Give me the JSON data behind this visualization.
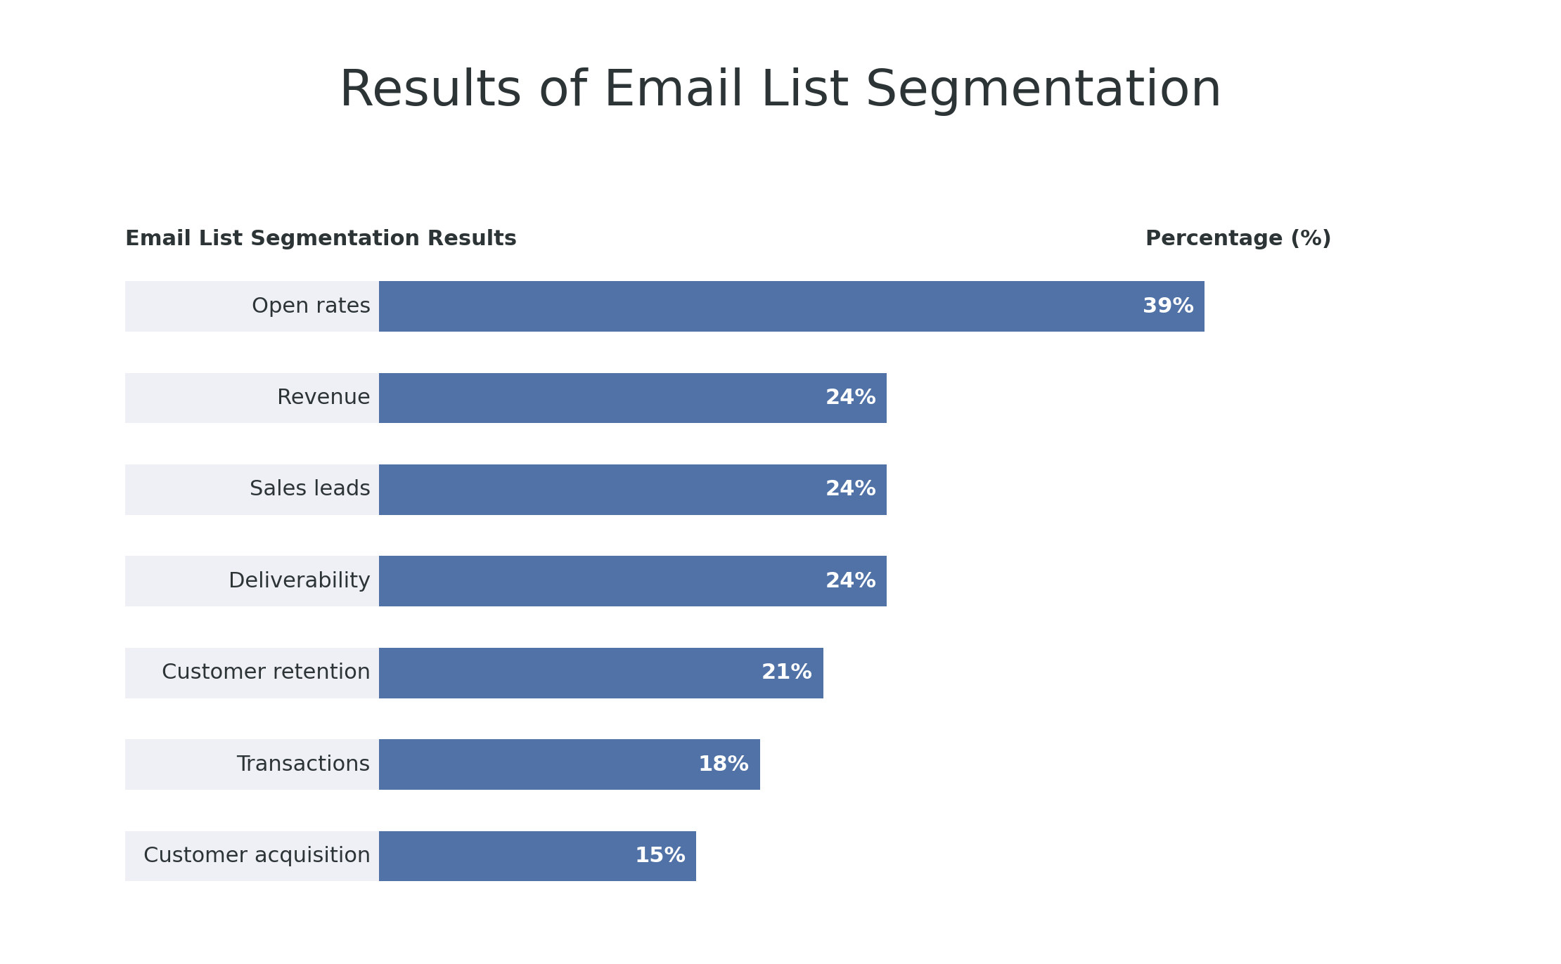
{
  "title": "Results of Email List Segmentation",
  "col_label_left": "Email List Segmentation Results",
  "col_label_right": "Percentage (%)",
  "categories": [
    "Open rates",
    "Revenue",
    "Sales leads",
    "Deliverability",
    "Customer retention",
    "Transactions",
    "Customer acquisition"
  ],
  "values": [
    39,
    24,
    24,
    24,
    21,
    18,
    15
  ],
  "bar_color": "#5072a7",
  "label_bg_color": "#eef0f6",
  "bar_label_color": "#ffffff",
  "title_color": "#2d3436",
  "axis_label_color": "#2d3436",
  "category_label_color": "#2d3436",
  "background_color": "#ffffff",
  "title_fontsize": 52,
  "col_label_fontsize": 22,
  "bar_label_fontsize": 22,
  "category_fontsize": 22,
  "max_val": 45
}
